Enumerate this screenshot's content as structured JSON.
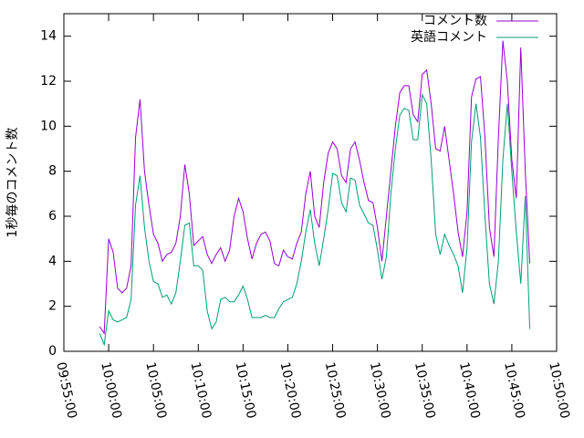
{
  "chart_data": {
    "type": "line",
    "ylabel": "1秒毎のコメント数",
    "x": [
      "09:59:00",
      "09:59:30",
      "10:00:00",
      "10:00:30",
      "10:01:00",
      "10:01:30",
      "10:02:00",
      "10:02:30",
      "10:03:00",
      "10:03:30",
      "10:04:00",
      "10:04:30",
      "10:05:00",
      "10:05:30",
      "10:06:00",
      "10:06:30",
      "10:07:00",
      "10:07:30",
      "10:08:00",
      "10:08:30",
      "10:09:00",
      "10:09:30",
      "10:10:00",
      "10:10:30",
      "10:11:00",
      "10:11:30",
      "10:12:00",
      "10:12:30",
      "10:13:00",
      "10:13:30",
      "10:14:00",
      "10:14:30",
      "10:15:00",
      "10:15:30",
      "10:16:00",
      "10:16:30",
      "10:17:00",
      "10:17:30",
      "10:18:00",
      "10:18:30",
      "10:19:00",
      "10:19:30",
      "10:20:00",
      "10:20:30",
      "10:21:00",
      "10:21:30",
      "10:22:00",
      "10:22:30",
      "10:23:00",
      "10:23:30",
      "10:24:00",
      "10:24:30",
      "10:25:00",
      "10:25:30",
      "10:26:00",
      "10:26:30",
      "10:27:00",
      "10:27:30",
      "10:28:00",
      "10:28:30",
      "10:29:00",
      "10:29:30",
      "10:30:00",
      "10:30:30",
      "10:31:00",
      "10:31:30",
      "10:32:00",
      "10:32:30",
      "10:33:00",
      "10:33:30",
      "10:34:00",
      "10:34:30",
      "10:35:00",
      "10:35:30",
      "10:36:00",
      "10:36:30",
      "10:37:00",
      "10:37:30",
      "10:38:00",
      "10:38:30",
      "10:39:00",
      "10:39:30",
      "10:40:00",
      "10:40:30",
      "10:41:00",
      "10:41:30",
      "10:42:00",
      "10:42:30",
      "10:43:00",
      "10:43:30",
      "10:44:00",
      "10:44:30",
      "10:45:00",
      "10:45:30",
      "10:46:00",
      "10:46:30",
      "10:47:00"
    ],
    "series": [
      {
        "name": "コメント数",
        "color": "#9400d3",
        "values": [
          1.1,
          0.8,
          5.0,
          4.4,
          2.8,
          2.6,
          2.8,
          3.8,
          9.5,
          11.2,
          8.0,
          6.5,
          5.2,
          4.8,
          4.0,
          4.3,
          4.4,
          4.8,
          6.0,
          8.3,
          7.0,
          4.7,
          4.9,
          5.1,
          4.3,
          3.9,
          4.3,
          4.6,
          4.0,
          4.5,
          6.0,
          6.8,
          6.2,
          5.0,
          4.1,
          4.8,
          5.2,
          5.3,
          4.9,
          3.9,
          3.8,
          4.5,
          4.2,
          4.1,
          4.8,
          5.3,
          7.0,
          8.0,
          6.0,
          5.5,
          7.5,
          8.8,
          9.3,
          9.0,
          7.8,
          7.5,
          9.0,
          9.3,
          8.5,
          7.5,
          6.7,
          6.6,
          5.5,
          4.0,
          6.0,
          8.0,
          10.0,
          11.5,
          11.8,
          11.8,
          10.5,
          10.2,
          12.3,
          12.5,
          11.0,
          9.0,
          8.9,
          10.0,
          8.5,
          7.0,
          5.3,
          4.2,
          6.2,
          11.3,
          12.1,
          12.2,
          9.5,
          5.5,
          4.2,
          9.5,
          13.8,
          12.0,
          8.5,
          6.8,
          13.5,
          8.0,
          3.9
        ]
      },
      {
        "name": "英語コメント",
        "color": "#009e73",
        "values": [
          0.8,
          0.3,
          1.8,
          1.4,
          1.3,
          1.4,
          1.5,
          2.3,
          6.5,
          7.8,
          5.5,
          4.0,
          3.1,
          3.0,
          2.4,
          2.5,
          2.1,
          2.6,
          4.0,
          5.6,
          5.7,
          3.8,
          3.8,
          3.6,
          1.8,
          1.0,
          1.3,
          2.3,
          2.4,
          2.2,
          2.2,
          2.5,
          2.9,
          2.3,
          1.5,
          1.5,
          1.5,
          1.6,
          1.5,
          1.5,
          1.9,
          2.2,
          2.3,
          2.4,
          3.0,
          4.0,
          5.3,
          6.3,
          4.8,
          3.8,
          5.0,
          6.3,
          7.9,
          7.8,
          6.6,
          6.2,
          7.7,
          7.6,
          6.5,
          6.1,
          5.7,
          5.6,
          4.5,
          3.2,
          4.2,
          7.0,
          9.0,
          10.5,
          10.8,
          10.7,
          9.4,
          9.4,
          11.4,
          11.0,
          8.5,
          5.2,
          4.3,
          5.2,
          4.7,
          4.3,
          3.8,
          2.6,
          4.6,
          9.3,
          11.0,
          9.5,
          6.0,
          3.0,
          2.1,
          4.0,
          8.5,
          11.0,
          8.0,
          5.3,
          3.0,
          6.9,
          1.0
        ]
      }
    ],
    "xlim": [
      "09:55:00",
      "10:50:00"
    ],
    "xticks": [
      "09:55:00",
      "10:00:00",
      "10:05:00",
      "10:10:00",
      "10:15:00",
      "10:20:00",
      "10:25:00",
      "10:30:00",
      "10:35:00",
      "10:40:00",
      "10:45:00",
      "10:50:00"
    ],
    "ylim": [
      0,
      15
    ],
    "yticks": [
      0,
      2,
      4,
      6,
      8,
      10,
      12,
      14
    ],
    "grid": false,
    "legend": "top-right"
  }
}
